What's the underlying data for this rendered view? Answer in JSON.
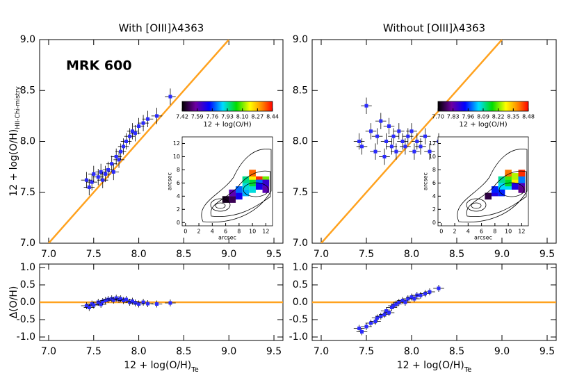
{
  "chart_data": [
    {
      "type": "scatter",
      "title": "With [OIII]λ4363",
      "annotation": "MRK 600",
      "ylabel": "12 + log(O/H)",
      "ylabel_sub": "HII-Chi-mistry",
      "xlim": [
        6.9,
        9.6
      ],
      "ylim": [
        7,
        9
      ],
      "xticks": [
        {
          "value": 7,
          "label": "7.0"
        },
        7.5,
        {
          "value": 8,
          "label": "8.0"
        },
        8.5,
        {
          "value": 9,
          "label": "9.0"
        },
        9.5
      ],
      "yticks": [
        {
          "value": 7,
          "label": "7.0"
        },
        7.5,
        {
          "value": 8,
          "label": "8.0"
        },
        8.5,
        {
          "value": 9,
          "label": "9.0"
        }
      ],
      "x": [
        7.42,
        7.45,
        7.48,
        7.5,
        7.55,
        7.58,
        7.6,
        7.63,
        7.66,
        7.7,
        7.72,
        7.75,
        7.78,
        7.8,
        7.83,
        7.86,
        7.9,
        7.93,
        7.96,
        8.0,
        8.05,
        8.1,
        8.2,
        8.35
      ],
      "values": [
        7.62,
        7.55,
        7.6,
        7.68,
        7.65,
        7.7,
        7.62,
        7.68,
        7.72,
        7.78,
        7.7,
        7.85,
        7.82,
        7.9,
        7.95,
        8.0,
        8.05,
        8.1,
        8.08,
        8.15,
        8.18,
        8.22,
        8.25,
        8.44
      ],
      "xerr": 0.06,
      "yerr": 0.08,
      "color": "#2b2bff",
      "errorbar_color": "#000000",
      "identity_line": true,
      "line_color": "#ffa21f",
      "inset": {
        "colorbar_ticks": [
          7.42,
          7.59,
          7.76,
          7.93,
          {
            "value": 8.1,
            "label": "8.10"
          },
          8.27,
          8.44
        ],
        "clim": [
          7.42,
          8.44
        ],
        "colorbar_label": "12 + log(O/H)",
        "xlabel": "arcsec",
        "ylabel": "arcsec",
        "xlim": [
          -0.5,
          13
        ],
        "ylim": [
          -0.5,
          13
        ],
        "xticks": [
          0,
          2,
          4,
          6,
          8,
          10,
          12
        ],
        "yticks": [
          0,
          2,
          4,
          6,
          8,
          10,
          12
        ],
        "x": [
          6,
          7,
          8,
          9,
          10,
          11,
          12,
          7,
          8,
          9,
          10,
          11,
          12,
          9,
          10,
          11,
          12,
          10,
          11,
          12
        ],
        "y": [
          3.5,
          3.5,
          4,
          4.5,
          5,
          5.5,
          6,
          4.5,
          5,
          5.5,
          6,
          6.5,
          6.5,
          6.5,
          7,
          6,
          5,
          7.5,
          5.5,
          6
        ],
        "values": [
          7.45,
          7.5,
          7.7,
          7.85,
          7.9,
          7.95,
          8.3,
          7.6,
          7.8,
          7.9,
          8.0,
          8.4,
          8.1,
          7.95,
          8.2,
          7.8,
          7.6,
          8.35,
          7.7,
          7.65
        ]
      }
    },
    {
      "type": "scatter",
      "title": "Without [OIII]λ4363",
      "xlim": [
        6.9,
        9.6
      ],
      "ylim": [
        7,
        9
      ],
      "xticks": [
        {
          "value": 7,
          "label": "7.0"
        },
        7.5,
        {
          "value": 8,
          "label": "8.0"
        },
        8.5,
        {
          "value": 9,
          "label": "9.0"
        },
        9.5
      ],
      "yticks": [
        {
          "value": 7,
          "label": "7.0"
        },
        7.5,
        {
          "value": 8,
          "label": "8.0"
        },
        8.5,
        {
          "value": 9,
          "label": "9.0"
        }
      ],
      "x": [
        7.42,
        7.45,
        7.5,
        7.55,
        7.6,
        7.62,
        7.66,
        7.7,
        7.72,
        7.75,
        7.78,
        7.8,
        7.83,
        7.86,
        7.9,
        7.93,
        7.96,
        8.0,
        8.03,
        8.06,
        8.1,
        8.15,
        8.2,
        8.3
      ],
      "values": [
        8.0,
        7.95,
        8.35,
        8.1,
        7.9,
        8.05,
        8.2,
        7.85,
        8.0,
        8.15,
        7.95,
        8.05,
        7.9,
        8.1,
        8.0,
        7.95,
        8.05,
        8.1,
        7.9,
        8.0,
        7.95,
        8.05,
        7.9,
        8.0
      ],
      "xerr": 0.06,
      "yerr": 0.08,
      "color": "#2b2bff",
      "errorbar_color": "#000000",
      "identity_line": true,
      "line_color": "#ffa21f",
      "inset": {
        "colorbar_ticks": [
          {
            "value": 7.7,
            "label": "7.70"
          },
          7.83,
          7.96,
          8.09,
          8.22,
          8.35,
          8.48
        ],
        "clim": [
          7.7,
          8.48
        ],
        "colorbar_label": "12 + log(O/H)",
        "xlabel": "arcsec",
        "ylabel": "arcsec",
        "xlim": [
          -0.5,
          13
        ],
        "ylim": [
          -0.5,
          13
        ],
        "xticks": [
          0,
          2,
          4,
          6,
          8,
          10,
          12
        ],
        "yticks": [
          0,
          2,
          4,
          6,
          8,
          10,
          12
        ],
        "x": [
          7,
          8,
          9,
          10,
          11,
          12,
          8,
          9,
          10,
          11,
          12,
          9,
          10,
          11,
          12,
          10,
          11,
          12,
          9,
          12
        ],
        "y": [
          4,
          4.5,
          5,
          5.5,
          6,
          6,
          5,
          5.5,
          6,
          6.5,
          6.5,
          6.5,
          7,
          5.5,
          5,
          7.5,
          7,
          7,
          4.5,
          7.5
        ],
        "values": [
          7.75,
          7.9,
          8.0,
          8.05,
          8.1,
          7.85,
          7.95,
          8.05,
          8.15,
          8.3,
          8.0,
          8.1,
          8.2,
          7.9,
          7.8,
          8.4,
          8.25,
          8.0,
          7.95,
          8.45
        ]
      }
    },
    {
      "type": "scatter",
      "ylabel": "Δ(O/H)",
      "xlabel": "12 + log(O/H)",
      "xlabel_sub": "Te",
      "xlim": [
        6.9,
        9.6
      ],
      "ylim": [
        -1.1,
        1.1
      ],
      "xticks": [
        {
          "value": 7,
          "label": "7.0"
        },
        7.5,
        {
          "value": 8,
          "label": "8.0"
        },
        8.5,
        {
          "value": 9,
          "label": "9.0"
        },
        9.5
      ],
      "yticks": [
        {
          "value": -1,
          "label": "-1.0"
        },
        -0.5,
        {
          "value": 0,
          "label": "0.0"
        },
        0.5,
        {
          "value": 1,
          "label": "1.0"
        }
      ],
      "x": [
        7.42,
        7.45,
        7.48,
        7.5,
        7.55,
        7.58,
        7.6,
        7.63,
        7.66,
        7.7,
        7.72,
        7.75,
        7.78,
        7.8,
        7.83,
        7.86,
        7.9,
        7.93,
        7.96,
        8.0,
        8.05,
        8.1,
        8.2,
        8.35
      ],
      "values": [
        -0.1,
        -0.15,
        -0.05,
        -0.08,
        0.0,
        -0.06,
        0.02,
        0.05,
        0.08,
        0.1,
        0.06,
        0.12,
        0.08,
        0.1,
        0.05,
        0.08,
        0.0,
        0.03,
        -0.02,
        -0.05,
        0.0,
        -0.04,
        -0.05,
        -0.02
      ],
      "xerr": 0.06,
      "yerr": 0.1,
      "color": "#2b2bff",
      "errorbar_color": "#000000",
      "zero_line": true,
      "line_color": "#ffa21f"
    },
    {
      "type": "scatter",
      "xlabel": "12 + log(O/H)",
      "xlabel_sub": "Te",
      "xlim": [
        6.9,
        9.6
      ],
      "ylim": [
        -1.1,
        1.1
      ],
      "xticks": [
        {
          "value": 7,
          "label": "7.0"
        },
        7.5,
        {
          "value": 8,
          "label": "8.0"
        },
        8.5,
        {
          "value": 9,
          "label": "9.0"
        },
        9.5
      ],
      "yticks": [
        {
          "value": -1,
          "label": "-1.0"
        },
        -0.5,
        {
          "value": 0,
          "label": "0.0"
        },
        0.5,
        {
          "value": 1,
          "label": "1.0"
        }
      ],
      "x": [
        7.42,
        7.45,
        7.5,
        7.55,
        7.6,
        7.62,
        7.66,
        7.7,
        7.72,
        7.75,
        7.78,
        7.8,
        7.83,
        7.86,
        7.9,
        7.93,
        7.96,
        8.0,
        8.03,
        8.06,
        8.1,
        8.15,
        8.2,
        8.3
      ],
      "values": [
        -0.75,
        -0.85,
        -0.7,
        -0.6,
        -0.55,
        -0.45,
        -0.4,
        -0.35,
        -0.25,
        -0.3,
        -0.15,
        -0.1,
        -0.05,
        0.0,
        0.05,
        0.0,
        0.1,
        0.15,
        0.1,
        0.2,
        0.2,
        0.25,
        0.3,
        0.4
      ],
      "xerr": 0.06,
      "yerr": 0.1,
      "color": "#2b2bff",
      "errorbar_color": "#000000",
      "zero_line": true,
      "line_color": "#ffa21f"
    }
  ]
}
